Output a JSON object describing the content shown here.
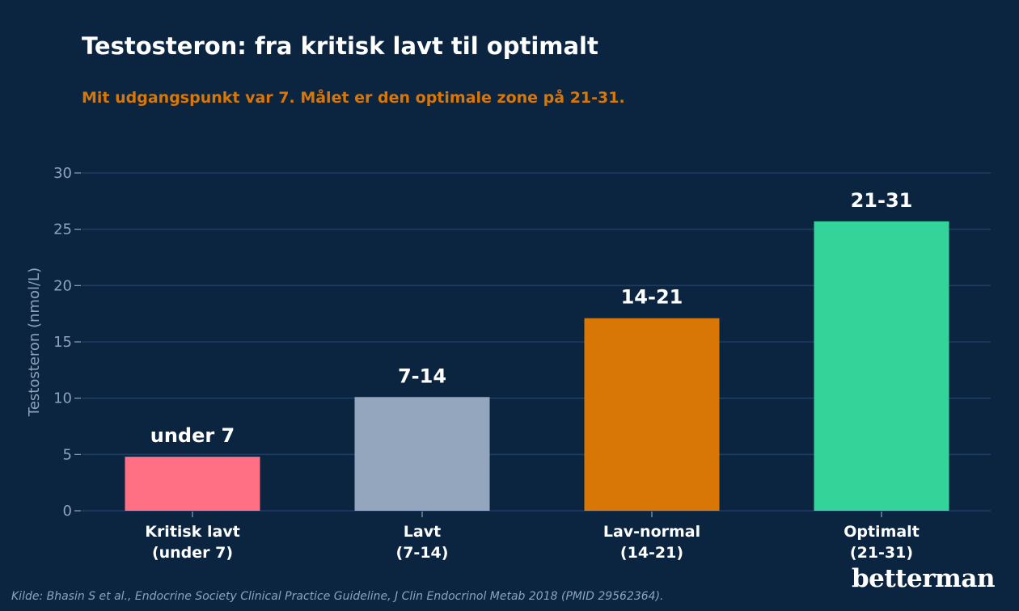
{
  "title": "Testosteron: fra kritisk lavt til optimalt",
  "subtitle": "Mit udgangspunkt var 7. Målet er den optimale zone på 21-31.",
  "source": "Kilde: Bhasin S et al., Endocrine Society Clinical Practice Guideline, J Clin Endocrinol Metab 2018 (PMID 29562364).",
  "brand": "betterman",
  "colors": {
    "background": "#0b2540",
    "grid": "#1d3d62",
    "tick_text": "#8fa2bb",
    "category_text": "#ffffff",
    "accent": "#d97706"
  },
  "chart_data": {
    "type": "bar",
    "categories": [
      [
        "Kritisk lavt",
        "(under 7)"
      ],
      [
        "Lavt",
        "(7-14)"
      ],
      [
        "Lav-normal",
        "(14-21)"
      ],
      [
        "Optimalt",
        "(21-31)"
      ]
    ],
    "values": [
      4.8,
      10.1,
      17.1,
      25.7
    ],
    "data_labels": [
      "under 7",
      "7-14",
      "14-21",
      "21-31"
    ],
    "bar_colors": [
      "#ff7085",
      "#94a6be",
      "#d97706",
      "#34d399"
    ],
    "xlabel": "",
    "ylabel": "Testosteron (nmol/L)",
    "ylim": [
      0,
      30
    ],
    "yticks": [
      0,
      5,
      10,
      15,
      20,
      25,
      30
    ],
    "grid": true,
    "legend": "none"
  }
}
